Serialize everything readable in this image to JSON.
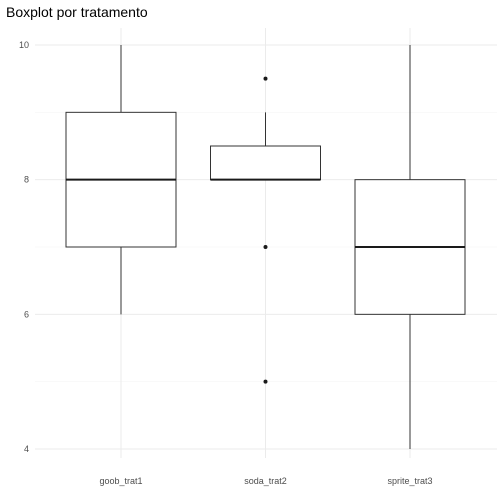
{
  "chart_data": {
    "type": "boxplot",
    "title": "Boxplot por tratamento",
    "xlabel": "",
    "ylabel": "",
    "ylim": [
      4,
      10
    ],
    "yticks": [
      4,
      6,
      8,
      10
    ],
    "grid": true,
    "categories": [
      "goob_trat1",
      "soda_trat2",
      "sprite_trat3"
    ],
    "boxes": [
      {
        "category": "goob_trat1",
        "whisker_low": 6,
        "q1": 7,
        "median": 8,
        "q3": 9,
        "whisker_high": 10,
        "outliers": []
      },
      {
        "category": "soda_trat2",
        "whisker_low": 8,
        "q1": 8,
        "median": 8,
        "q3": 8.5,
        "whisker_high": 9,
        "outliers": [
          5,
          7,
          9.5
        ]
      },
      {
        "category": "sprite_trat3",
        "whisker_low": 4,
        "q1": 6,
        "median": 7,
        "q3": 8,
        "whisker_high": 10,
        "outliers": []
      }
    ],
    "colors": {
      "box_fill": "#ffffff",
      "box_stroke": "#333333",
      "grid_major": "#ebebeb",
      "grid_minor": "#f5f5f5"
    }
  }
}
